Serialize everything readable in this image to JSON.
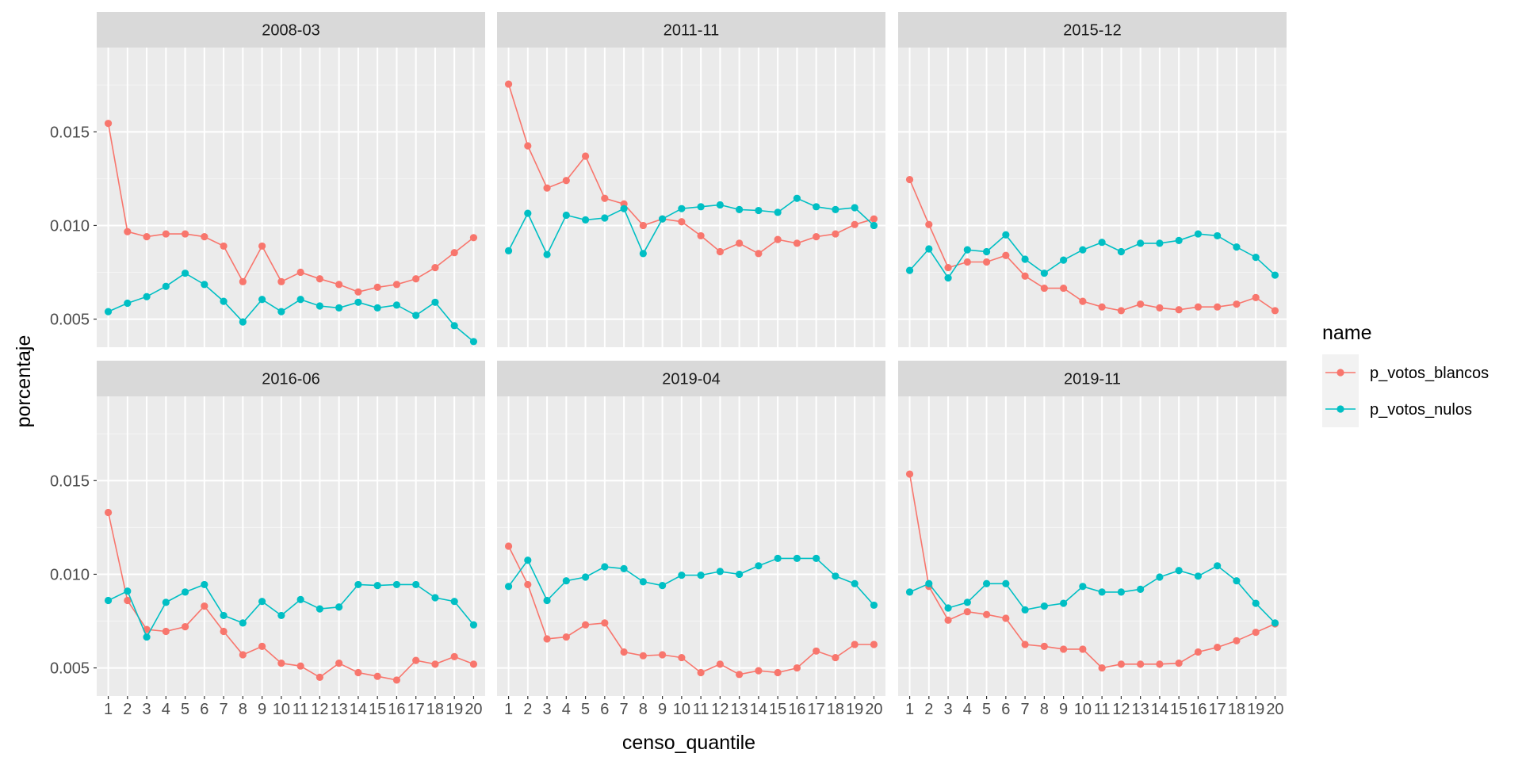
{
  "chart_data": {
    "type": "line",
    "facet_by": "date",
    "xlabel": "censo_quantile",
    "ylabel": "porcentaje",
    "x": [
      1,
      2,
      3,
      4,
      5,
      6,
      7,
      8,
      9,
      10,
      11,
      12,
      13,
      14,
      15,
      16,
      17,
      18,
      19,
      20
    ],
    "x_tick_labels": [
      "1",
      "2",
      "3",
      "4",
      "5",
      "6",
      "7",
      "8",
      "9",
      "10",
      "11",
      "12",
      "13",
      "14",
      "15",
      "16",
      "17",
      "18",
      "19",
      "20"
    ],
    "ylim": [
      0.0035,
      0.0195
    ],
    "y_ticks": [
      0.005,
      0.01,
      0.015
    ],
    "y_tick_labels": [
      "0.005",
      "0.010",
      "0.015"
    ],
    "grid": true,
    "legend": {
      "title": "name",
      "position": "right",
      "entries": [
        {
          "name": "p_votos_blancos",
          "color": "#F8766D"
        },
        {
          "name": "p_votos_nulos",
          "color": "#00BFC4"
        }
      ]
    },
    "panels": [
      {
        "label": "2008-03",
        "series": [
          {
            "name": "p_votos_blancos",
            "color": "#F8766D",
            "values": [
              0.01545,
              0.00967,
              0.0094,
              0.00955,
              0.00955,
              0.0094,
              0.0089,
              0.007,
              0.0089,
              0.007,
              0.0075,
              0.00715,
              0.00685,
              0.00645,
              0.0067,
              0.00685,
              0.00715,
              0.00775,
              0.00855,
              0.00935
            ]
          },
          {
            "name": "p_votos_nulos",
            "color": "#00BFC4",
            "values": [
              0.0054,
              0.00585,
              0.0062,
              0.00675,
              0.00745,
              0.00685,
              0.00595,
              0.00485,
              0.00605,
              0.0054,
              0.00605,
              0.0057,
              0.0056,
              0.0059,
              0.0056,
              0.00575,
              0.0052,
              0.0059,
              0.00465,
              0.0038
            ]
          }
        ]
      },
      {
        "label": "2011-11",
        "series": [
          {
            "name": "p_votos_blancos",
            "color": "#F8766D",
            "values": [
              0.01755,
              0.01425,
              0.012,
              0.0124,
              0.0137,
              0.01145,
              0.01115,
              0.01,
              0.01035,
              0.0102,
              0.00945,
              0.0086,
              0.00905,
              0.0085,
              0.00925,
              0.00905,
              0.0094,
              0.00955,
              0.01005,
              0.01035
            ]
          },
          {
            "name": "p_votos_nulos",
            "color": "#00BFC4",
            "values": [
              0.00865,
              0.01065,
              0.00845,
              0.01055,
              0.0103,
              0.0104,
              0.0109,
              0.0085,
              0.01035,
              0.0109,
              0.011,
              0.0111,
              0.01085,
              0.0108,
              0.0107,
              0.01145,
              0.011,
              0.01085,
              0.01095,
              0.01
            ]
          }
        ]
      },
      {
        "label": "2015-12",
        "series": [
          {
            "name": "p_votos_blancos",
            "color": "#F8766D",
            "values": [
              0.01245,
              0.01005,
              0.00775,
              0.00805,
              0.00805,
              0.0084,
              0.0073,
              0.00665,
              0.00665,
              0.00595,
              0.00565,
              0.00545,
              0.0058,
              0.0056,
              0.0055,
              0.00565,
              0.00565,
              0.0058,
              0.00615,
              0.00545
            ]
          },
          {
            "name": "p_votos_nulos",
            "color": "#00BFC4",
            "values": [
              0.0076,
              0.00875,
              0.0072,
              0.0087,
              0.0086,
              0.0095,
              0.0082,
              0.00745,
              0.00815,
              0.0087,
              0.0091,
              0.0086,
              0.00905,
              0.00905,
              0.0092,
              0.00955,
              0.00945,
              0.00885,
              0.0083,
              0.00735
            ]
          }
        ]
      },
      {
        "label": "2016-06",
        "series": [
          {
            "name": "p_votos_blancos",
            "color": "#F8766D",
            "values": [
              0.0133,
              0.0086,
              0.00705,
              0.00695,
              0.0072,
              0.0083,
              0.00695,
              0.0057,
              0.00615,
              0.00525,
              0.0051,
              0.0045,
              0.00525,
              0.00475,
              0.00455,
              0.00435,
              0.0054,
              0.0052,
              0.0056,
              0.0052
            ]
          },
          {
            "name": "p_votos_nulos",
            "color": "#00BFC4",
            "values": [
              0.0086,
              0.0091,
              0.00665,
              0.0085,
              0.00905,
              0.00945,
              0.0078,
              0.0074,
              0.00855,
              0.0078,
              0.00865,
              0.00815,
              0.00825,
              0.00945,
              0.0094,
              0.00945,
              0.00945,
              0.00875,
              0.00855,
              0.0073
            ]
          }
        ]
      },
      {
        "label": "2019-04",
        "series": [
          {
            "name": "p_votos_blancos",
            "color": "#F8766D",
            "values": [
              0.0115,
              0.00945,
              0.00655,
              0.00665,
              0.0073,
              0.0074,
              0.00585,
              0.00565,
              0.0057,
              0.00555,
              0.00475,
              0.0052,
              0.00465,
              0.00485,
              0.00475,
              0.005,
              0.0059,
              0.00555,
              0.00625,
              0.00625
            ]
          },
          {
            "name": "p_votos_nulos",
            "color": "#00BFC4",
            "values": [
              0.00935,
              0.01075,
              0.0086,
              0.00965,
              0.00985,
              0.0104,
              0.0103,
              0.0096,
              0.0094,
              0.00995,
              0.00995,
              0.01015,
              0.01,
              0.01045,
              0.01085,
              0.01085,
              0.01085,
              0.0099,
              0.0095,
              0.00835
            ]
          }
        ]
      },
      {
        "label": "2019-11",
        "series": [
          {
            "name": "p_votos_blancos",
            "color": "#F8766D",
            "values": [
              0.01535,
              0.00935,
              0.00755,
              0.008,
              0.00785,
              0.00765,
              0.00625,
              0.00615,
              0.006,
              0.006,
              0.005,
              0.0052,
              0.0052,
              0.0052,
              0.00525,
              0.00585,
              0.0061,
              0.00645,
              0.0069,
              0.00735
            ]
          },
          {
            "name": "p_votos_nulos",
            "color": "#00BFC4",
            "values": [
              0.00905,
              0.0095,
              0.0082,
              0.0085,
              0.0095,
              0.0095,
              0.0081,
              0.0083,
              0.00845,
              0.00935,
              0.00905,
              0.00905,
              0.0092,
              0.00985,
              0.0102,
              0.0099,
              0.01045,
              0.00965,
              0.00845,
              0.0074
            ]
          }
        ]
      }
    ]
  }
}
